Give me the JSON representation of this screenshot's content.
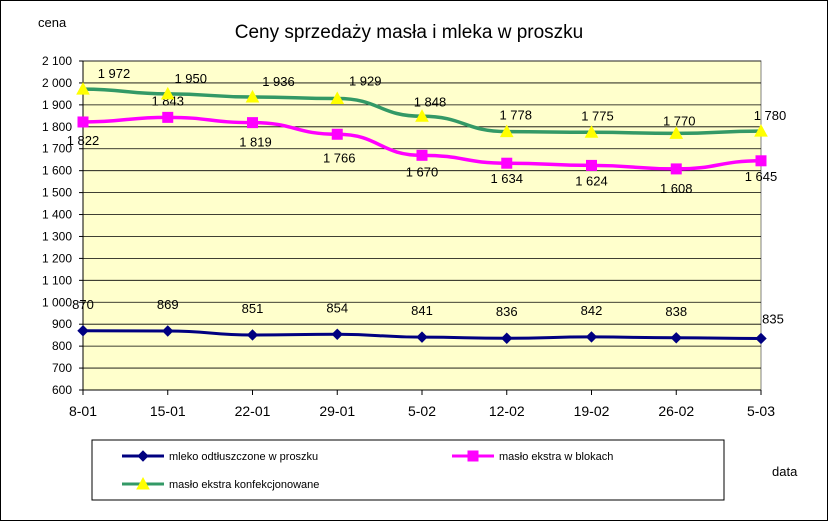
{
  "chart_data": {
    "type": "line",
    "title": "Ceny sprzedaży masła i mleka w proszku",
    "ylabel": "cena",
    "xlabel": "data",
    "categories": [
      "8-01",
      "15-01",
      "22-01",
      "29-01",
      "5-02",
      "12-02",
      "19-02",
      "26-02",
      "5-03"
    ],
    "ylim": [
      600,
      2100
    ],
    "ytick_step": 100,
    "grid": true,
    "legend_position": "bottom",
    "plot_background": "#ffffcc",
    "series": [
      {
        "name": "mleko odtłuszczone w proszku",
        "color": "#000080",
        "marker": "diamond",
        "values": [
          870,
          869,
          851,
          854,
          841,
          836,
          842,
          838,
          835
        ],
        "labels": [
          "870",
          "869",
          "851",
          "854",
          "841",
          "836",
          "842",
          "838",
          "835"
        ]
      },
      {
        "name": "masło ekstra w blokach",
        "color": "#ff00ff",
        "marker": "square",
        "values": [
          1822,
          1843,
          1819,
          1766,
          1670,
          1634,
          1624,
          1608,
          1645
        ],
        "labels": [
          "1 822",
          "1 843",
          "1 819",
          "1 766",
          "1 670",
          "1 634",
          "1 624",
          "1 608",
          "1 645"
        ]
      },
      {
        "name": "masło ekstra konfekcjonowane",
        "color": "#339966",
        "marker": "triangle",
        "marker_color": "#ffff00",
        "values": [
          1972,
          1950,
          1936,
          1929,
          1848,
          1778,
          1775,
          1770,
          1780
        ],
        "labels": [
          "1 972",
          "1 950",
          "1 936",
          "1 929",
          "1 848",
          "1 778",
          "1 775",
          "1 770",
          "1 780"
        ]
      }
    ]
  }
}
